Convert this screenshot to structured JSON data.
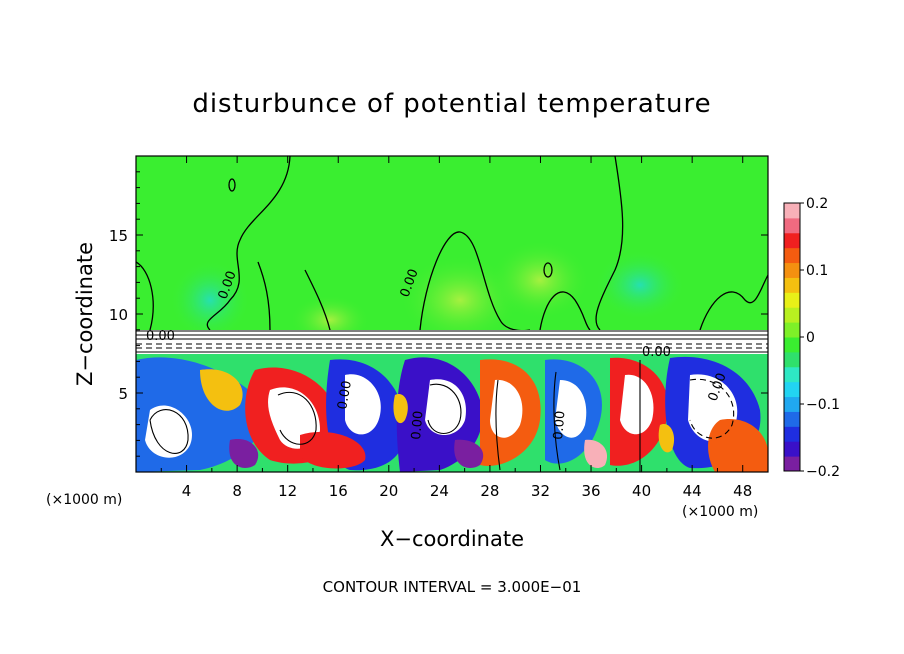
{
  "chart_data": {
    "type": "heatmap",
    "title": "disturbunce of potential temperature",
    "xlabel": "X−coordinate",
    "ylabel": "Z−coordinate",
    "x_unit": "(×1000 m)",
    "y_unit": "(×1000 m)",
    "xlim": [
      0,
      50
    ],
    "ylim": [
      0,
      20
    ],
    "x_ticks": [
      4,
      8,
      12,
      16,
      20,
      24,
      28,
      32,
      36,
      40,
      44,
      48
    ],
    "x_tick_labels": [
      "4",
      "8",
      "12",
      "16",
      "20",
      "24",
      "28",
      "32",
      "36",
      "40",
      "44",
      "48"
    ],
    "y_ticks": [
      5,
      10,
      15
    ],
    "y_tick_labels": [
      "5",
      "10",
      "15"
    ],
    "colorbar": {
      "min": -0.2,
      "max": 0.2,
      "ticks": [
        0.2,
        0.1,
        0,
        -0.1,
        -0.2
      ],
      "tick_labels": [
        "0.2",
        "0.1",
        "0",
        "−0.1",
        "−0.2"
      ],
      "colors": [
        "#7a1fa0",
        "#3a10c8",
        "#1f2ee0",
        "#1f6ae8",
        "#20a8f0",
        "#22d4f2",
        "#2ee8c4",
        "#2fe06c",
        "#3aee30",
        "#7ef028",
        "#b8f020",
        "#e8f018",
        "#f4c010",
        "#f49010",
        "#f45c10",
        "#f02020",
        "#f06a80",
        "#f8b0b8"
      ]
    },
    "contour_labels": [
      "0.00",
      "0.00",
      "0.00",
      "0.00",
      "0.00",
      "0.00",
      "0.00",
      "0.00"
    ],
    "footer": "CONTOUR INTERVAL = 3.000E−01",
    "upper_layer_value": "near 0 (green)",
    "boundary_z": 9
  }
}
